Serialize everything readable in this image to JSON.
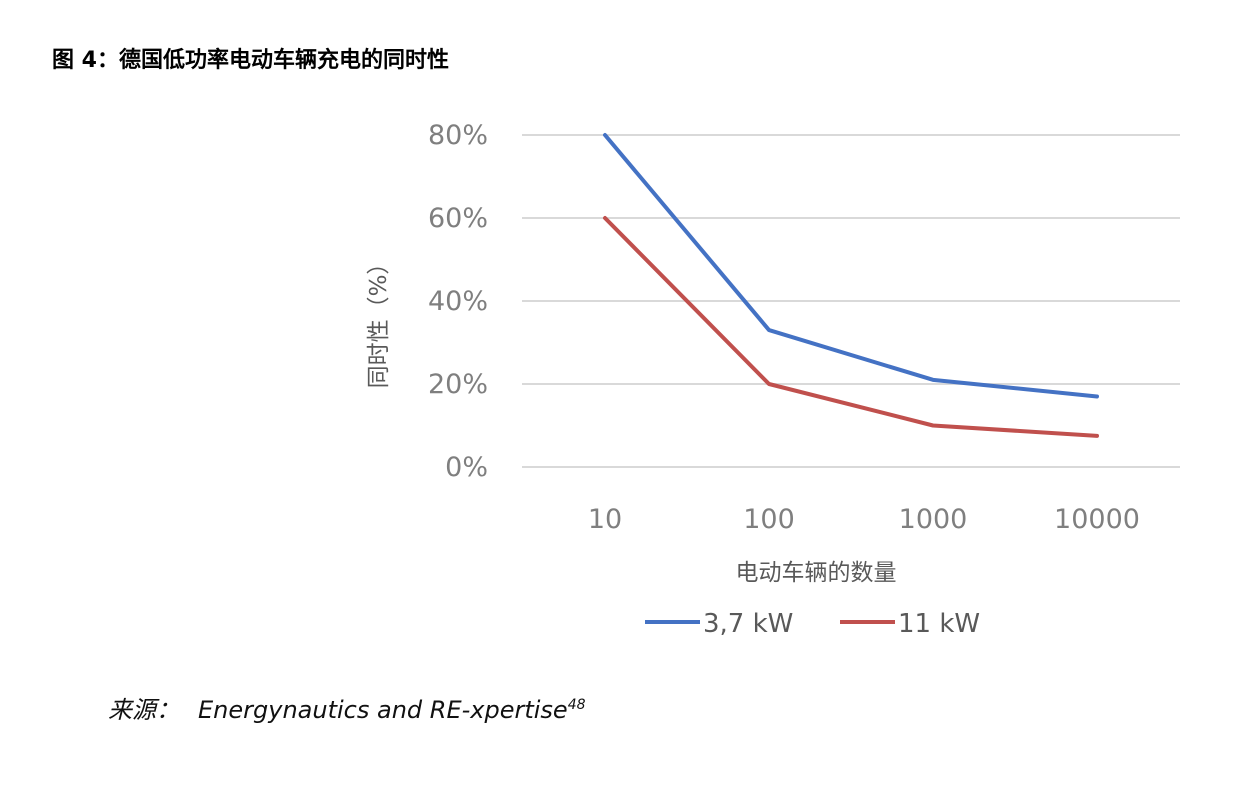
{
  "figure_caption": "图 4：德国低功率电动车辆充电的同时性",
  "chart_data": {
    "type": "line",
    "categories": [
      "10",
      "100",
      "1000",
      "10000"
    ],
    "series": [
      {
        "name": "3,7 kW",
        "color": "#4472c4",
        "values": [
          80,
          33,
          21,
          17
        ]
      },
      {
        "name": "11 kW",
        "color": "#c0504d",
        "values": [
          60,
          20,
          10,
          7.5
        ]
      }
    ],
    "y_ticks": [
      "0%",
      "20%",
      "40%",
      "60%",
      "80%"
    ],
    "y_tick_values": [
      0,
      20,
      40,
      60,
      80
    ],
    "ylim": [
      0,
      80
    ],
    "ylabel": "同时性（%）",
    "xlabel": "电动车辆的数量",
    "x_scale": "log",
    "grid": true,
    "legend_position": "bottom"
  },
  "source": {
    "prefix": "来源：",
    "text": "Energynautics and RE-xpertise",
    "superscript": "48"
  }
}
